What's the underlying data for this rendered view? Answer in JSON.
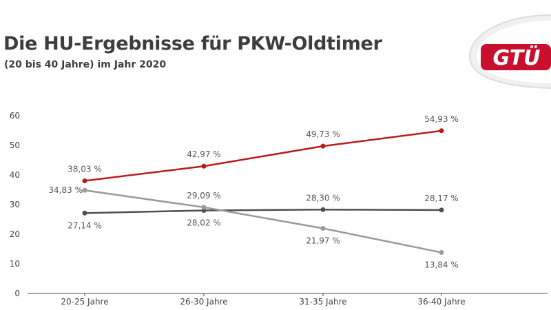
{
  "logo": {
    "text": "GTÜ",
    "color": "#c8102e"
  },
  "chart_data": {
    "type": "line",
    "title": "Die HU-Ergebnisse für PKW-Oldtimer",
    "subtitle": "(20 bis 40 Jahre) im Jahr 2020",
    "xlabel": "",
    "ylabel": "",
    "ylim": [
      0,
      60
    ],
    "yticks": [
      0,
      10,
      20,
      30,
      40,
      50,
      60
    ],
    "categories": [
      "20-25 Jahre",
      "26-30 Jahre",
      "31-35 Jahre",
      "36-40 Jahre"
    ],
    "series": [
      {
        "name": "red",
        "color": "#b71c1c",
        "values": [
          38.03,
          42.97,
          49.73,
          54.93
        ],
        "labels": [
          "38,03 %",
          "42,97 %",
          "49,73 %",
          "54,93 %"
        ],
        "label_pos": [
          "above",
          "above",
          "above",
          "above"
        ]
      },
      {
        "name": "light-gray",
        "color": "#9a9a9a",
        "values": [
          34.83,
          29.09,
          21.97,
          13.84
        ],
        "labels": [
          "34,83 %",
          "29,09 %",
          "21,97 %",
          "13,84 %"
        ],
        "label_pos": [
          "left",
          "above",
          "below",
          "below"
        ]
      },
      {
        "name": "dark-gray",
        "color": "#4f4f4f",
        "values": [
          27.14,
          28.02,
          28.3,
          28.17
        ],
        "labels": [
          "27,14 %",
          "28,02 %",
          "28,30 %",
          "28,17 %"
        ],
        "label_pos": [
          "below",
          "below",
          "above",
          "above"
        ]
      }
    ]
  }
}
